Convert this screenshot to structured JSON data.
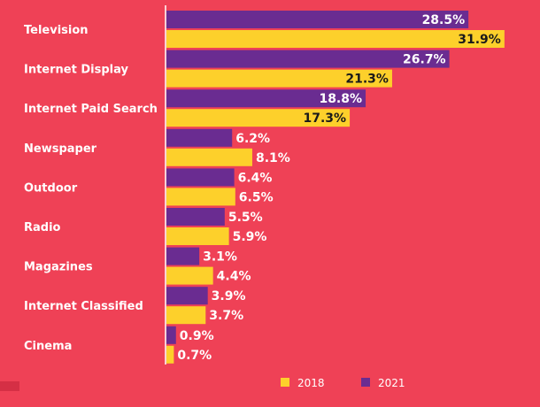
{
  "colors": {
    "background": "#ef4156",
    "axis": "#ffffff",
    "label_text": "#ffffff",
    "label_on_bar": "#ffffff",
    "label_on_light_bar": "#1a1a1a",
    "corner_mark": "#d52f45"
  },
  "chart_data": {
    "type": "bar",
    "orientation": "horizontal",
    "categories": [
      "Television",
      "Internet Display",
      "Internet Paid Search",
      "Newspaper",
      "Outdoor",
      "Radio",
      "Magazines",
      "Internet Classified",
      "Cinema"
    ],
    "series": [
      {
        "name": "2021",
        "color": "#6a2c91",
        "values": [
          28.5,
          26.7,
          18.8,
          6.2,
          6.4,
          5.5,
          3.1,
          3.9,
          0.9
        ],
        "labels": [
          "28.5%",
          "26.7%",
          "18.8%",
          "6.2%",
          "6.4%",
          "5.5%",
          "3.1%",
          "3.9%",
          "0.9%"
        ]
      },
      {
        "name": "2018",
        "color": "#fdd02b",
        "values": [
          31.9,
          21.3,
          17.3,
          8.1,
          6.5,
          5.9,
          4.4,
          3.7,
          0.7
        ],
        "labels": [
          "31.9%",
          "21.3%",
          "17.3%",
          "8.1%",
          "6.5%",
          "5.9%",
          "4.4%",
          "3.7%",
          "0.7%"
        ]
      }
    ],
    "xlim": [
      0,
      34
    ],
    "grid": false,
    "legend": {
      "position": "bottom-right",
      "items": [
        {
          "label": "2018",
          "color": "#fdd02b"
        },
        {
          "label": "2021",
          "color": "#6a2c91"
        }
      ]
    }
  }
}
